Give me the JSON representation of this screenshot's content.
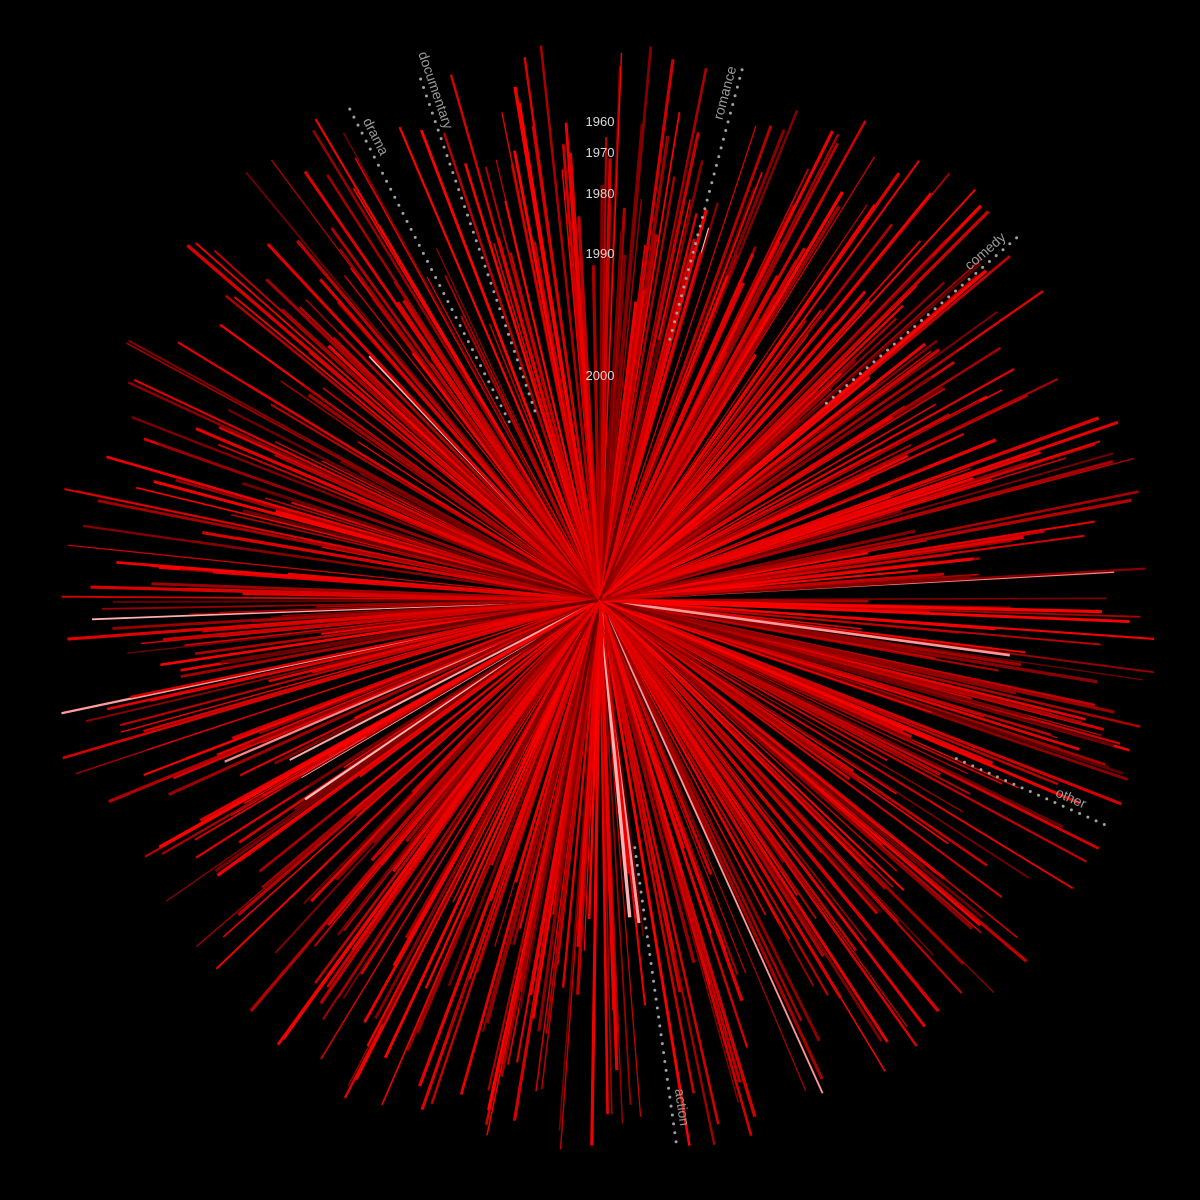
{
  "chart_data": {
    "type": "radial-burst",
    "title": "",
    "year_rings": [
      "1960",
      "1970",
      "1980",
      "1990",
      "2000"
    ],
    "genres": [
      {
        "name": "drama",
        "angle_deg": -27
      },
      {
        "name": "documentary",
        "angle_deg": -19
      },
      {
        "name": "romance",
        "angle_deg": 15
      },
      {
        "name": "comedy",
        "angle_deg": 49
      },
      {
        "name": "other",
        "angle_deg": 114
      },
      {
        "name": "action",
        "angle_deg": 172
      }
    ],
    "series": [
      {
        "ray_count": 720
      }
    ],
    "colors": {
      "background": "#000000",
      "ray_bright": "#ff0000",
      "ray_dark": "#5a0000",
      "ray_highlight": "#ffd0d0",
      "guide": "#a0a0a0",
      "year_text": "#d9d9d9"
    }
  }
}
